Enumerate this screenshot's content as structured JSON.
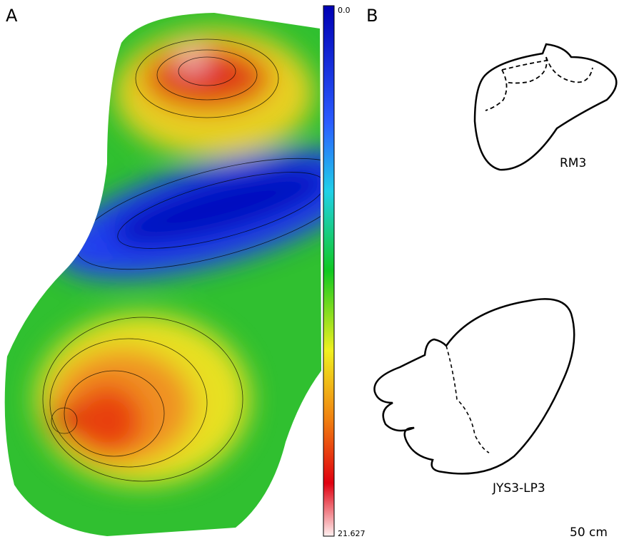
{
  "panels": {
    "a": {
      "label": "A",
      "colorbar": {
        "top": "0.0",
        "bottom": "21.627"
      }
    },
    "b": {
      "label": "B",
      "outlines": [
        {
          "label": "RM3"
        },
        {
          "label": "JYS3-LP3"
        }
      ],
      "scale": "50 cm"
    }
  }
}
